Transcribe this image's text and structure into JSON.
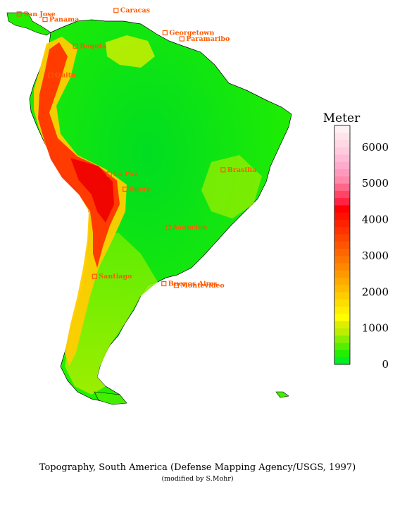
{
  "caption": "Topography, South America  (Defense Mapping Agency/USGS, 1997)",
  "subcaption": "(modified by S.Mohr)",
  "legend": {
    "title": "Meter",
    "unit": "m",
    "min": 0,
    "max": 6600,
    "ticks": [
      "6000",
      "5000",
      "4000",
      "3000",
      "2000",
      "1000",
      "0"
    ],
    "tick_values": [
      6000,
      5000,
      4000,
      3000,
      2000,
      1000,
      0
    ],
    "colors": [
      "#00ee22",
      "#22ee00",
      "#55ee00",
      "#88ee00",
      "#bbee00",
      "#ddee00",
      "#ffff00",
      "#ffee00",
      "#ffdd00",
      "#ffcc00",
      "#ffbb00",
      "#ffaa00",
      "#ff9900",
      "#ff8800",
      "#ff7700",
      "#ff6600",
      "#ff5500",
      "#ff4400",
      "#ff3300",
      "#ff2200",
      "#ff1100",
      "#ff0000",
      "#ff2244",
      "#ff4466",
      "#ff6688",
      "#ff88aa",
      "#ff99bb",
      "#ffaacc",
      "#ffbbd6",
      "#ffccdd",
      "#ffd8e4",
      "#ffe4ec",
      "#fff0f4"
    ]
  },
  "cities": [
    {
      "name": "San Jose",
      "lon": -84.1,
      "lat": 9.9
    },
    {
      "name": "Panama",
      "lon": -79.5,
      "lat": 9.0
    },
    {
      "name": "Caracas",
      "lon": -66.9,
      "lat": 10.5
    },
    {
      "name": "Georgetown",
      "lon": -58.2,
      "lat": 6.8
    },
    {
      "name": "Paramaribo",
      "lon": -55.2,
      "lat": 5.8
    },
    {
      "name": "Bogota",
      "lon": -74.1,
      "lat": 4.6
    },
    {
      "name": "Quito",
      "lon": -78.5,
      "lat": -0.2
    },
    {
      "name": "La Paz",
      "lon": -68.1,
      "lat": -16.5
    },
    {
      "name": "Sucre",
      "lon": -65.3,
      "lat": -19.0
    },
    {
      "name": "Brasilia",
      "lon": -47.9,
      "lat": -15.8
    },
    {
      "name": "Asuncion",
      "lon": -57.6,
      "lat": -25.3
    },
    {
      "name": "Santiago",
      "lon": -70.7,
      "lat": -33.4
    },
    {
      "name": "Buenos Aires",
      "lon": -58.4,
      "lat": -34.6
    },
    {
      "name": "Montevideo",
      "lon": -56.2,
      "lat": -34.9
    }
  ],
  "land_color": "#00ee00",
  "highland_color": "#ff3300",
  "colors": {
    "labels": "#ff5a00",
    "background": "#ffffff"
  }
}
